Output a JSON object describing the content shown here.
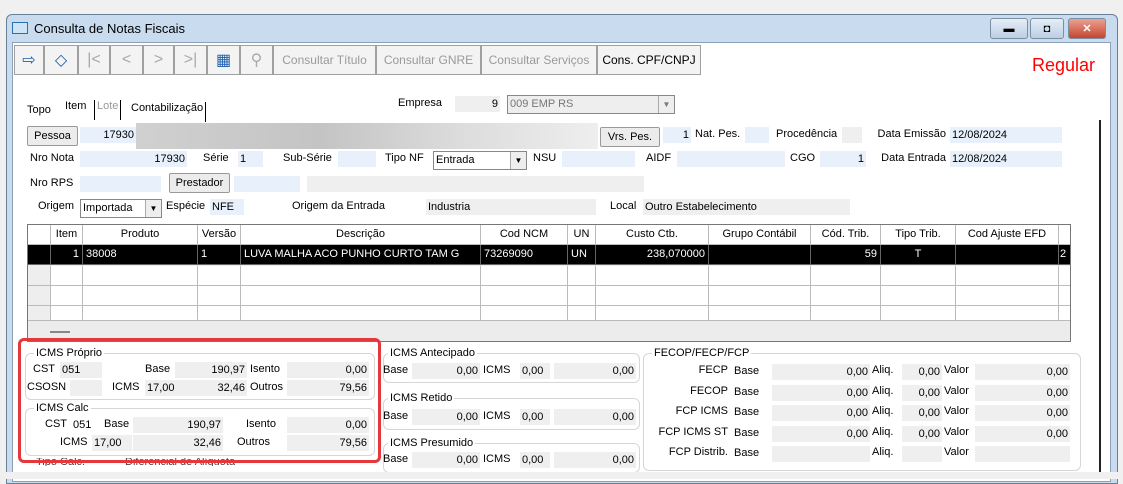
{
  "window": {
    "title": "Consulta de Notas Fiscais",
    "status": "Regular",
    "status_color": "#ff0000"
  },
  "toolbar": {
    "icons": [
      "exit-icon",
      "eraser-icon",
      "first-icon",
      "previous-icon",
      "next-icon",
      "last-icon",
      "table-icon",
      "search-icon"
    ],
    "buttons": [
      "Consultar Título",
      "Consultar GNRE",
      "Consultar Serviços",
      "Cons. CPF/CNPJ"
    ]
  },
  "tabs": [
    "Topo",
    "Item",
    "Lote",
    "Contabilização"
  ],
  "header": {
    "empresa_label": "Empresa",
    "empresa_code": "9",
    "empresa_name": "009 EMP RS",
    "pessoa_button": "Pessoa",
    "pessoa_code": "17930",
    "vrs_pes_button": "Vrs. Pes.",
    "vrs_pes_value": "1",
    "nat_pes_label": "Nat. Pes.",
    "procedencia_label": "Procedência",
    "data_emissao_label": "Data Emissão",
    "data_emissao": "12/08/2024",
    "nro_nota_label": "Nro Nota",
    "nro_nota": "17930",
    "serie_label": "Série",
    "serie": "1",
    "sub_serie_label": "Sub-Série",
    "tipo_nf_label": "Tipo NF",
    "tipo_nf": "Entrada",
    "nsu_label": "NSU",
    "aidf_label": "AIDF",
    "cgo_label": "CGO",
    "cgo": "1",
    "data_entrada_label": "Data Entrada",
    "data_entrada": "12/08/2024",
    "nro_rps_label": "Nro RPS",
    "prestador_button": "Prestador",
    "origem_label": "Origem",
    "origem": "Importada",
    "especie_label": "Espécie",
    "especie": "NFE",
    "origem_entrada_label": "Origem da Entrada",
    "origem_entrada": "Industria",
    "local_label": "Local",
    "local": "Outro Estabelecimento"
  },
  "grid": {
    "columns": [
      "Item",
      "Produto",
      "Versão",
      "Descrição",
      "Cod NCM",
      "UN",
      "Custo Ctb.",
      "Grupo Contábil",
      "Cód. Trib.",
      "Tipo Trib.",
      "Cod Ajuste EFD",
      ""
    ],
    "rows": [
      [
        "1",
        "38008",
        "1",
        "LUVA MALHA ACO PUNHO CURTO TAM G",
        "73269090",
        "UN",
        "238,070000",
        "",
        "59",
        "T",
        "",
        "2"
      ]
    ]
  },
  "icms_proprio": {
    "title": "ICMS Próprio",
    "cst_label": "CST",
    "cst": "051",
    "base_label": "Base",
    "base": "190,97",
    "isento_label": "Isento",
    "isento": "0,00",
    "csosn_label": "CSOSN",
    "icms_label": "ICMS",
    "aliq": "17,00",
    "icms": "32,46",
    "outros_label": "Outros",
    "outros": "79,56"
  },
  "icms_calc": {
    "title": "ICMS Calc",
    "cst_label": "CST",
    "cst": "051",
    "base_label": "Base",
    "base": "190,97",
    "isento_label": "Isento",
    "isento": "0,00",
    "icms_label": "ICMS",
    "aliq": "17,00",
    "icms": "32,46",
    "outros_label": "Outros",
    "outros": "79,56"
  },
  "bottom_partial": {
    "tipo_calc": "Tipo Calc.",
    "diferencial": "Diferencial de Alíquota"
  },
  "icms_antecipado": {
    "title": "ICMS Antecipado",
    "base_label": "Base",
    "base": "0,00",
    "icms_label": "ICMS",
    "aliq": "0,00",
    "valor": "0,00"
  },
  "icms_retido": {
    "title": "ICMS Retido",
    "base_label": "Base",
    "base": "0,00",
    "icms_label": "ICMS",
    "aliq": "0,00",
    "valor": "0,00"
  },
  "icms_presumido": {
    "title": "ICMS Presumido",
    "base_label": "Base",
    "base": "0,00",
    "icms_label": "ICMS",
    "aliq": "0,00",
    "valor": "0,00"
  },
  "fecp": {
    "title": "FECOP/FECP/FCP",
    "base_label": "Base",
    "aliq_label": "Aliq.",
    "valor_label": "Valor",
    "rows": [
      {
        "label": "FECP",
        "base": "0,00",
        "aliq": "0,00",
        "valor": "0,00"
      },
      {
        "label": "FECOP",
        "base": "0,00",
        "aliq": "0,00",
        "valor": "0,00"
      },
      {
        "label": "FCP ICMS",
        "base": "0,00",
        "aliq": "0,00",
        "valor": "0,00"
      },
      {
        "label": "FCP ICMS ST",
        "base": "0,00",
        "aliq": "0,00",
        "valor": "0,00"
      },
      {
        "label": "FCP Distrib.",
        "base": "",
        "aliq": "",
        "valor": ""
      }
    ]
  }
}
